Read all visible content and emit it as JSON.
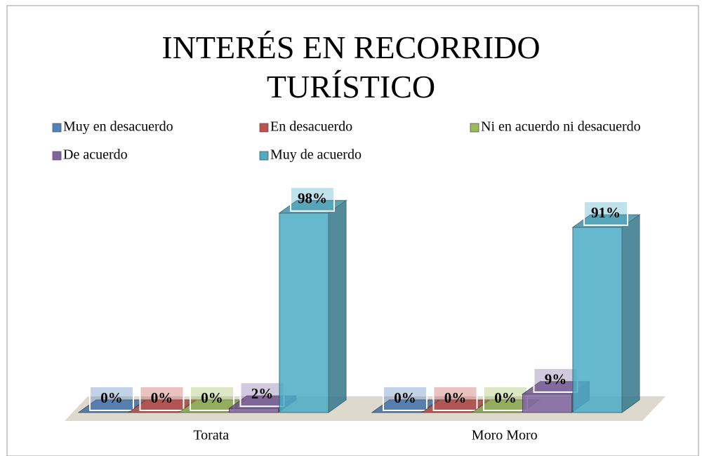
{
  "chart_data": {
    "type": "bar3d",
    "title": "INTERÉS EN RECORRIDO TURÍSTICO",
    "categories": [
      "Torata",
      "Moro Moro"
    ],
    "series": [
      {
        "name": "Muy en desacuerdo",
        "color": "#4f81bd",
        "values": [
          0,
          0
        ],
        "value_labels": [
          "0%",
          "0%"
        ]
      },
      {
        "name": "En desacuerdo",
        "color": "#c0504d",
        "values": [
          0,
          0
        ],
        "value_labels": [
          "0%",
          "0%"
        ]
      },
      {
        "name": "Ni en acuerdo ni desacuerdo",
        "color": "#9bbb59",
        "values": [
          0,
          0
        ],
        "value_labels": [
          "0%",
          "0%"
        ]
      },
      {
        "name": "De acuerdo",
        "color": "#8064a2",
        "values": [
          2,
          9
        ],
        "value_labels": [
          "2%",
          "9%"
        ]
      },
      {
        "name": "Muy de acuerdo",
        "color": "#4bacc6",
        "values": [
          98,
          91
        ],
        "value_labels": [
          "98%",
          "91%"
        ]
      }
    ],
    "legend": "top"
  }
}
